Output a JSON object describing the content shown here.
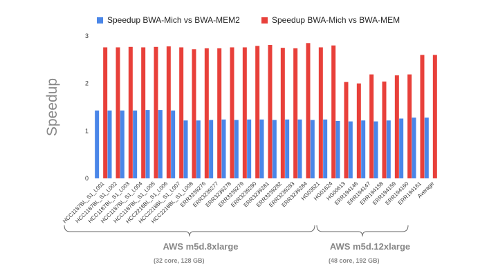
{
  "chart_data": {
    "type": "bar",
    "ylabel": "Speedup",
    "ylim": [
      0,
      3
    ],
    "yticks": [
      0,
      1,
      2,
      3
    ],
    "grid": false,
    "legend_position": "top-center",
    "categories": [
      "HCC1187BL_S1_L001",
      "HCC1187BL_S1_L002",
      "HCC1187BL_S1_L003",
      "HCC1187BL_S1_L004",
      "HCC1187BL_S1_L005",
      "HCC2218BL_S1_L006",
      "HCC2218BL_S1_L007",
      "HCC2218BL_S1_L008",
      "ERR3239276",
      "ERR3239277",
      "ERR3239278",
      "ERR3239279",
      "ERR3239280",
      "ERR3239281",
      "ERR3239282",
      "ERR3239283",
      "ERR3239284",
      "HG03521",
      "HG01624",
      "HG00613",
      "ERR194146",
      "ERR194147",
      "ERR194158",
      "ERR194159",
      "ERR194160",
      "ERR194161",
      "Average"
    ],
    "series": [
      {
        "name": "Speedup BWA-Mich vs BWA-MEM2",
        "color": "#4a86e8",
        "values": [
          1.43,
          1.43,
          1.43,
          1.43,
          1.44,
          1.44,
          1.43,
          1.22,
          1.22,
          1.23,
          1.24,
          1.23,
          1.24,
          1.24,
          1.23,
          1.24,
          1.24,
          1.23,
          1.24,
          1.21,
          1.2,
          1.22,
          1.2,
          1.22,
          1.26,
          1.28,
          1.28
        ]
      },
      {
        "name": "Speedup BWA-Mich vs BWA-MEM",
        "color": "#e8403a",
        "values": [
          2.76,
          2.76,
          2.77,
          2.76,
          2.77,
          2.78,
          2.76,
          2.72,
          2.74,
          2.74,
          2.76,
          2.76,
          2.79,
          2.81,
          2.75,
          2.74,
          2.85,
          2.76,
          2.8,
          2.03,
          2.0,
          2.19,
          2.04,
          2.17,
          2.19,
          2.6,
          2.6
        ]
      }
    ],
    "groups": [
      {
        "label": "AWS m5d.8xlarge",
        "sublabel": "(32 core, 128 GB)"
      },
      {
        "label": "AWS m5d.12xlarge",
        "sublabel": "(48 core, 192 GB)"
      }
    ]
  }
}
